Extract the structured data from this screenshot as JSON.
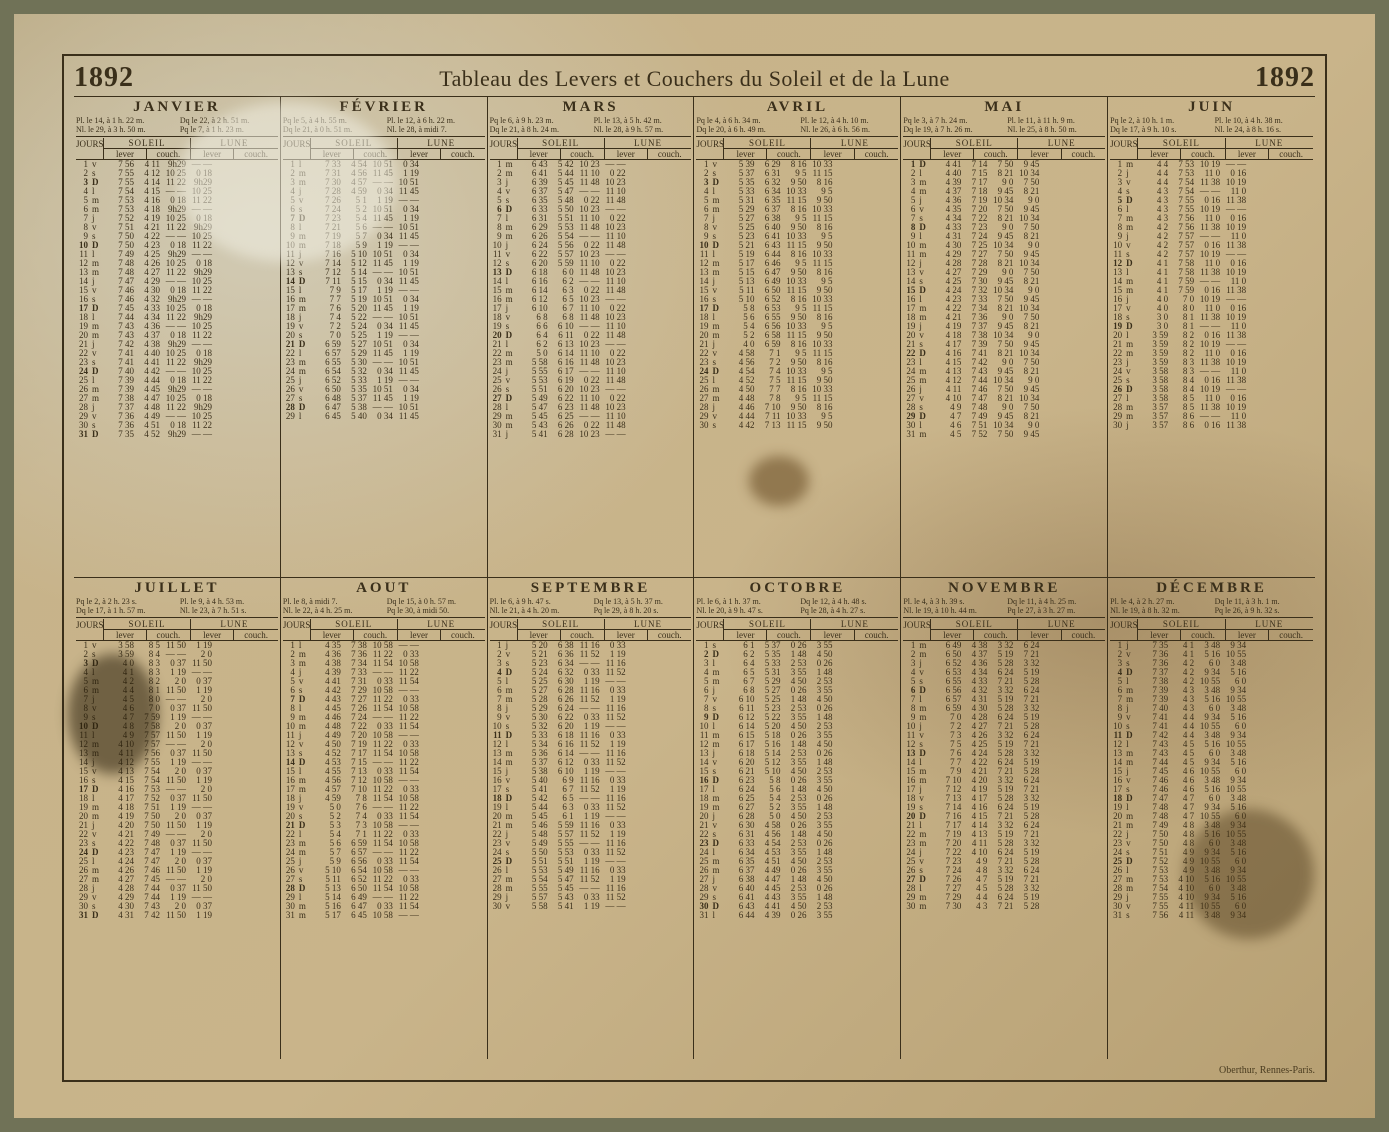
{
  "year": "1892",
  "title": "Tableau des Levers et Couchers du Soleil et de la Lune",
  "imprint": "Oberthur, Rennes-Paris.",
  "col_labels": {
    "jours": "JOURS",
    "soleil": "SOLEIL",
    "lune": "LUNE",
    "lever": "lever",
    "coucher": "couch."
  },
  "weekday_letters": [
    "l",
    "m",
    "m",
    "j",
    "v",
    "s",
    "D"
  ],
  "colors": {
    "ink": "#3a2f1a",
    "paper_light": "#c9b48a",
    "paper_dark": "#b69f72",
    "border_outer": "#707257",
    "stain_dark": "#4a3c20"
  },
  "typography": {
    "title_fontsize_pt": 16,
    "year_fontsize_pt": 21,
    "month_fontsize_pt": 11,
    "body_fontsize_pt": 7,
    "font_family": "Times New Roman, serif"
  },
  "months": [
    {
      "name": "JANVIER",
      "days": 31,
      "first_weekday_idx": 4,
      "phases": [
        "Pl. le 14, à 1 h. 22 m.",
        "Dq le 22, à 2 h. 51 m.",
        "Nl. le 29, à 3 h. 50 m.",
        "Pq le 7, à 1 h. 23 m."
      ],
      "sun_rise_first": "7h56",
      "sun_rise_last": "7h35",
      "sun_set_first": "4h11",
      "sun_set_last": "4h52",
      "moon_sample": [
        "9h29",
        "10 25",
        "11 22",
        "— —",
        "0 18"
      ]
    },
    {
      "name": "FÉVRIER",
      "days": 29,
      "first_weekday_idx": 0,
      "phases": [
        "Pq le 5, à 4 h. 55 m.",
        "Pl. le 12, à 6 h. 22 m.",
        "Dq le 21, à 0 h. 51 m.",
        "Nl. le 28, à midi 7."
      ],
      "sun_rise_first": "7h33",
      "sun_rise_last": "6h45",
      "sun_set_first": "4h54",
      "sun_set_last": "5h40",
      "moon_sample": [
        "10 51",
        "11 45",
        "— —",
        "0 34",
        "1 19"
      ]
    },
    {
      "name": "MARS",
      "days": 31,
      "first_weekday_idx": 1,
      "phases": [
        "Pq le 6, à 9 h. 23 m.",
        "Pl. le 13, à 5 h. 42 m.",
        "Dq le 21, à 8 h. 24 m.",
        "Nl. le 28, à 9 h. 57 m."
      ],
      "sun_rise_first": "6h43",
      "sun_rise_last": "5h41",
      "sun_set_first": "5h42",
      "sun_set_last": "6h28",
      "moon_sample": [
        "10 23",
        "11 10",
        "11 48",
        "— —",
        "0 22"
      ]
    },
    {
      "name": "AVRIL",
      "days": 30,
      "first_weekday_idx": 4,
      "phases": [
        "Pq le 4, à 6 h. 34 m.",
        "Pl. le 12, à 4 h. 10 m.",
        "Dq le 20, à 6 h. 49 m.",
        "Nl. le 26, à 6 h. 56 m."
      ],
      "sun_rise_first": "5h39",
      "sun_rise_last": "4h42",
      "sun_set_first": "6h29",
      "sun_set_last": "7h13",
      "moon_sample": [
        "8 16",
        "9 5",
        "9 50",
        "10 33",
        "11 15"
      ]
    },
    {
      "name": "MAI",
      "days": 31,
      "first_weekday_idx": 6,
      "phases": [
        "Pq le 3, à 7 h. 24 m.",
        "Pl. le 11, à 11 h. 9 m.",
        "Dq le 19, à 7 h. 26 m.",
        "Nl. le 25, à 8 h. 50 m."
      ],
      "sun_rise_first": "4h41",
      "sun_rise_last": "4h5",
      "sun_set_first": "7h14",
      "sun_set_last": "7h52",
      "moon_sample": [
        "7 50",
        "8 21",
        "9 0",
        "9 45",
        "10 34"
      ]
    },
    {
      "name": "JUIN",
      "days": 30,
      "first_weekday_idx": 2,
      "phases": [
        "Pq le 2, à 10 h. 1 m.",
        "Pl. le 10, à 4 h. 38 m.",
        "Dq le 17, à 9 h. 10 s.",
        "Nl. le 24, à 8 h. 16 s."
      ],
      "sun_rise_first": "4h 4",
      "sun_rise_last": "3h57",
      "sun_set_first": "7h53",
      "sun_set_last": "8h 6",
      "moon_sample": [
        "10 19",
        "11 0",
        "11 38",
        "— —",
        "0 16"
      ]
    },
    {
      "name": "JUILLET",
      "days": 31,
      "first_weekday_idx": 4,
      "phases": [
        "Pq le 2, à 2 h. 23 s.",
        "Pl. le 9, à 4 h. 53 m.",
        "Dq le 17, à 1 h. 57 m.",
        "Nl. le 23, à 7 h. 51 s."
      ],
      "sun_rise_first": "3h58",
      "sun_rise_last": "4h31",
      "sun_set_first": "8h 5",
      "sun_set_last": "7h42",
      "moon_sample": [
        "11 50",
        "— —",
        "0 37",
        "1 19",
        "2 0"
      ]
    },
    {
      "name": "AOUT",
      "days": 31,
      "first_weekday_idx": 0,
      "phases": [
        "Pl. le 8, à midi 7.",
        "Dq le 15, à 0 h. 57 m.",
        "Nl. le 22, à 4 h. 25 m.",
        "Pq le 30, à midi 50."
      ],
      "sun_rise_first": "4h35",
      "sun_rise_last": "5h17",
      "sun_set_first": "7h38",
      "sun_set_last": "6h45",
      "moon_sample": [
        "10 58",
        "11 22",
        "11 54",
        "— —",
        "0 33"
      ]
    },
    {
      "name": "SEPTEMBRE",
      "days": 30,
      "first_weekday_idx": 3,
      "phases": [
        "Pl. le 6, à 9 h. 47 s.",
        "Dq le 13, à 5 h. 37 m.",
        "Nl. le 21, à 4 h. 20 m.",
        "Pq le 29, à 8 h. 20 s."
      ],
      "sun_rise_first": "5h20",
      "sun_rise_last": "5h58",
      "sun_set_first": "6h38",
      "sun_set_last": "5h41",
      "moon_sample": [
        "11 16",
        "11 52",
        "— —",
        "0 33",
        "1 19"
      ]
    },
    {
      "name": "OCTOBRE",
      "days": 31,
      "first_weekday_idx": 5,
      "phases": [
        "Pl. le 6, à 1 h. 37 m.",
        "Dq le 12, à 4 h. 48 s.",
        "Nl. le 20, à 9 h. 47 s.",
        "Pq le 28, à 4 h. 27 s."
      ],
      "sun_rise_first": "6h 1",
      "sun_rise_last": "6h44",
      "sun_set_first": "5h37",
      "sun_set_last": "4h39",
      "moon_sample": [
        "0 26",
        "1 48",
        "2 53",
        "3 55",
        "4 50"
      ]
    },
    {
      "name": "NOVEMBRE",
      "days": 30,
      "first_weekday_idx": 1,
      "phases": [
        "Pl. le 4, à 3 h. 39 s.",
        "Dq le 11, à 4 h. 25 m.",
        "Nl. le 19, à 10 h. 44 m.",
        "Pq le 27, à 3 h. 27 m."
      ],
      "sun_rise_first": "6h49",
      "sun_rise_last": "7h30",
      "sun_set_first": "4h38",
      "sun_set_last": "4h 3",
      "moon_sample": [
        "3 32",
        "5 19",
        "5 28",
        "6 24",
        "7 21"
      ]
    },
    {
      "name": "DÉCEMBRE",
      "days": 31,
      "first_weekday_idx": 3,
      "phases": [
        "Pl. le 4, à 2 h. 27 m.",
        "Dq le 11, à 3 h. 1 m.",
        "Nl. le 19, à 8 h. 32 m.",
        "Pq le 26, à 9 h. 32 s."
      ],
      "sun_rise_first": "7h35",
      "sun_rise_last": "7h56",
      "sun_set_first": "4h 1",
      "sun_set_last": "4h11",
      "moon_sample": [
        "3 48",
        "5 16",
        "6 0",
        "9 34",
        "10 55"
      ]
    }
  ]
}
